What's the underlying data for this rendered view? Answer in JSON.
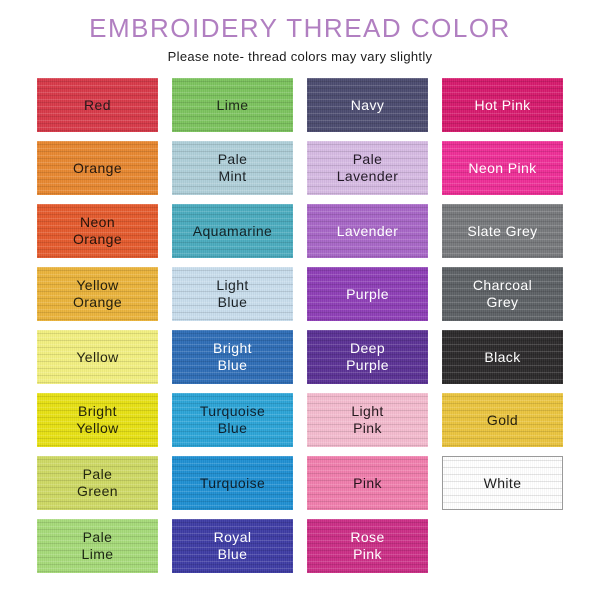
{
  "page": {
    "title": "EMBROIDERY THREAD COLOR",
    "subtitle": "Please note- thread colors may vary slightly",
    "title_color": "#b17fc1",
    "subtitle_color": "#1c1c1c"
  },
  "swatches": [
    {
      "label": "Red",
      "color": "#d73948",
      "text_color": "#26191b"
    },
    {
      "label": "Lime",
      "color": "#7cc35e",
      "text_color": "#1f2a1a"
    },
    {
      "label": "Navy",
      "color": "#4b4b6f",
      "text_color": "#ffffff"
    },
    {
      "label": "Hot Pink",
      "color": "#d61a6d",
      "text_color": "#ffffff"
    },
    {
      "label": "Orange",
      "color": "#e78730",
      "text_color": "#25180e"
    },
    {
      "label": "Pale\nMint",
      "color": "#afcfd9",
      "text_color": "#1c2226"
    },
    {
      "label": "Pale\nLavender",
      "color": "#d6bae3",
      "text_color": "#221a26"
    },
    {
      "label": "Neon Pink",
      "color": "#ee2e97",
      "text_color": "#ffffff"
    },
    {
      "label": "Neon\nOrange",
      "color": "#e45a2c",
      "text_color": "#25130b"
    },
    {
      "label": "Aquamarine",
      "color": "#4aabbe",
      "text_color": "#122226"
    },
    {
      "label": "Lavender",
      "color": "#a766c6",
      "text_color": "#ffffff"
    },
    {
      "label": "Slate Grey",
      "color": "#77797c",
      "text_color": "#ffffff"
    },
    {
      "label": "Yellow\nOrange",
      "color": "#eab33b",
      "text_color": "#25200e"
    },
    {
      "label": "Light\nBlue",
      "color": "#c8ddec",
      "text_color": "#1c2226"
    },
    {
      "label": "Purple",
      "color": "#8d3eb6",
      "text_color": "#ffffff"
    },
    {
      "label": "Charcoal\nGrey",
      "color": "#5d6165",
      "text_color": "#ffffff"
    },
    {
      "label": "Yellow",
      "color": "#f2ef80",
      "text_color": "#252511"
    },
    {
      "label": "Bright\nBlue",
      "color": "#2e6db6",
      "text_color": "#ffffff"
    },
    {
      "label": "Deep\nPurple",
      "color": "#5b3295",
      "text_color": "#ffffff"
    },
    {
      "label": "Black",
      "color": "#2c2a2b",
      "text_color": "#ffffff"
    },
    {
      "label": "Bright\nYellow",
      "color": "#e7e113",
      "text_color": "#242408"
    },
    {
      "label": "Turquoise\nBlue",
      "color": "#2ba4d7",
      "text_color": "#0e2230"
    },
    {
      "label": "Light\nPink",
      "color": "#f4bbce",
      "text_color": "#261a1f"
    },
    {
      "label": "Gold",
      "color": "#eac43e",
      "text_color": "#26200d"
    },
    {
      "label": "Pale\nGreen",
      "color": "#ced964",
      "text_color": "#23260f"
    },
    {
      "label": "Turquoise",
      "color": "#1f8fd2",
      "text_color": "#0d1f2c"
    },
    {
      "label": "Pink",
      "color": "#f07dac",
      "text_color": "#26131c"
    },
    {
      "label": "White",
      "color": "#ffffff",
      "text_color": "#1e1e1e",
      "border": "#9a9a9a"
    },
    {
      "label": "Pale\nLime",
      "color": "#a6da79",
      "text_color": "#1c2613"
    },
    {
      "label": "Royal\nBlue",
      "color": "#3e3ca4",
      "text_color": "#ffffff"
    },
    {
      "label": "Rose\nPink",
      "color": "#cb2e86",
      "text_color": "#ffffff"
    }
  ]
}
